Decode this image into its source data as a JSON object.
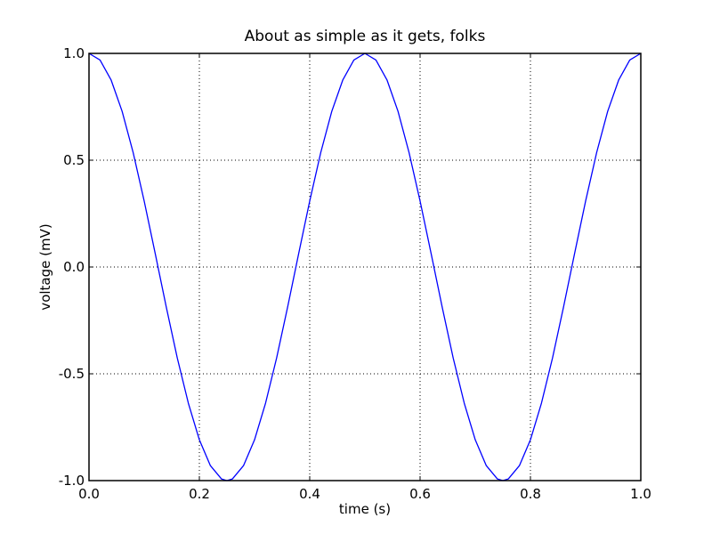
{
  "chart_data": {
    "type": "line",
    "title": "About as simple as it gets, folks",
    "xlabel": "time (s)",
    "ylabel": "voltage (mV)",
    "xlim": [
      0.0,
      1.0
    ],
    "ylim": [
      -1.0,
      1.0
    ],
    "grid": true,
    "grid_style": "dotted",
    "x_ticks": [
      0.0,
      0.2,
      0.4,
      0.6,
      0.8,
      1.0
    ],
    "x_tick_labels": [
      "0.0",
      "0.2",
      "0.4",
      "0.6",
      "0.8",
      "1.0"
    ],
    "y_ticks": [
      -1.0,
      -0.5,
      0.0,
      0.5,
      1.0
    ],
    "y_tick_labels": [
      "-1.0",
      "-0.5",
      "0.0",
      "0.5",
      "1.0"
    ],
    "series": [
      {
        "color": "#0000ff",
        "x": [
          0.0,
          0.02,
          0.04,
          0.06,
          0.08,
          0.1,
          0.12,
          0.14,
          0.16,
          0.18,
          0.2,
          0.22,
          0.24,
          0.25,
          0.26,
          0.28,
          0.3,
          0.32,
          0.34,
          0.36,
          0.38,
          0.4,
          0.42,
          0.44,
          0.46,
          0.48,
          0.5,
          0.52,
          0.54,
          0.56,
          0.58,
          0.6,
          0.62,
          0.64,
          0.66,
          0.68,
          0.7,
          0.72,
          0.74,
          0.75,
          0.76,
          0.78,
          0.8,
          0.82,
          0.84,
          0.86,
          0.88,
          0.9,
          0.92,
          0.94,
          0.96,
          0.98,
          1.0
        ],
        "y": [
          1.0,
          0.969,
          0.876,
          0.729,
          0.536,
          0.309,
          0.063,
          -0.187,
          -0.426,
          -0.637,
          -0.809,
          -0.93,
          -0.992,
          -1.0,
          -0.992,
          -0.93,
          -0.809,
          -0.637,
          -0.426,
          -0.187,
          0.063,
          0.309,
          0.536,
          0.729,
          0.876,
          0.969,
          1.0,
          0.969,
          0.876,
          0.729,
          0.536,
          0.309,
          0.063,
          -0.187,
          -0.426,
          -0.637,
          -0.809,
          -0.93,
          -0.992,
          -1.0,
          -0.992,
          -0.93,
          -0.809,
          -0.637,
          -0.426,
          -0.187,
          0.063,
          0.309,
          0.536,
          0.729,
          0.876,
          0.969,
          1.0
        ]
      }
    ]
  }
}
